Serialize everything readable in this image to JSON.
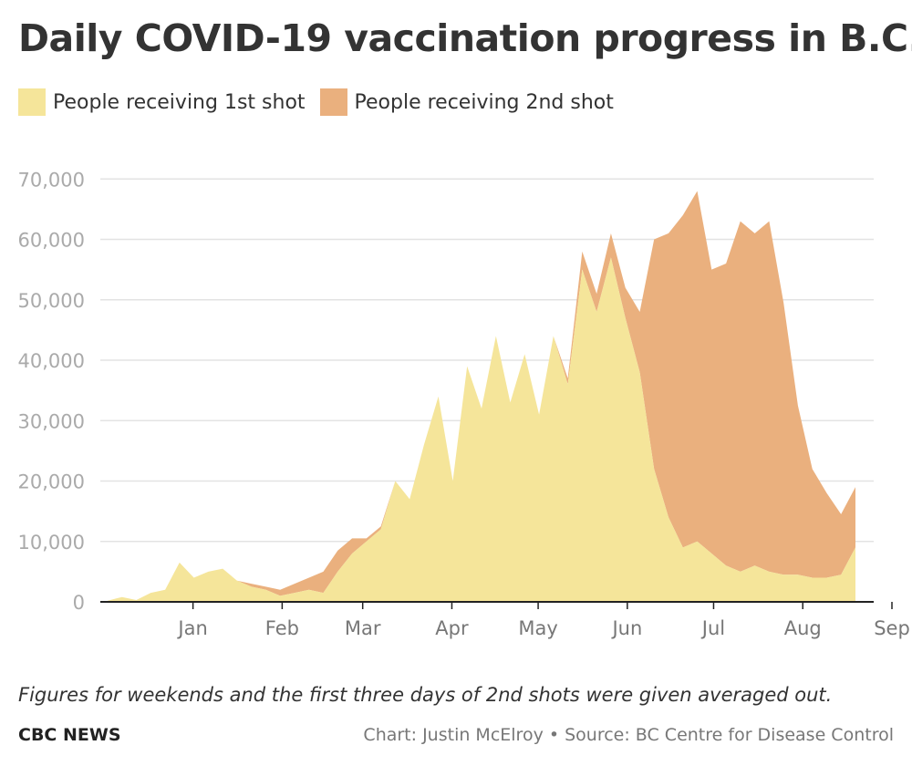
{
  "title": "Daily COVID-19 vaccination progress in B.C.",
  "legend": [
    {
      "label": "People receiving 1st shot",
      "color": "#f5e59a"
    },
    {
      "label": "People receiving 2nd shot",
      "color": "#eab07e"
    }
  ],
  "note": "Figures for weekends and the first three days of 2nd shots were given averaged out.",
  "brand": "CBC NEWS",
  "credit": "Chart: Justin McElroy • Source: BC Centre for Disease Control",
  "chart_data": {
    "type": "area",
    "stacked": true,
    "ylim": [
      0,
      80000
    ],
    "yticks": [
      0,
      10000,
      20000,
      30000,
      40000,
      50000,
      60000,
      70000
    ],
    "ytick_labels": [
      "0",
      "10,000",
      "20,000",
      "30,000",
      "40,000",
      "50,000",
      "60,000",
      "70,000"
    ],
    "xtick_labels": [
      "Jan",
      "Feb",
      "Mar",
      "Apr",
      "May",
      "Jun",
      "Jul",
      "Aug",
      "Sep"
    ],
    "grid": true,
    "x": [
      "Dec 15",
      "Dec 20",
      "Dec 25",
      "Dec 30",
      "Jan 4",
      "Jan 9",
      "Jan 14",
      "Jan 19",
      "Jan 24",
      "Jan 29",
      "Feb 3",
      "Feb 8",
      "Feb 13",
      "Feb 18",
      "Feb 23",
      "Feb 28",
      "Mar 5",
      "Mar 10",
      "Mar 15",
      "Mar 20",
      "Mar 25",
      "Mar 30",
      "Apr 4",
      "Apr 9",
      "Apr 14",
      "Apr 19",
      "Apr 24",
      "Apr 29",
      "May 4",
      "May 9",
      "May 14",
      "May 19",
      "May 24",
      "May 29",
      "Jun 3",
      "Jun 8",
      "Jun 13",
      "Jun 18",
      "Jun 23",
      "Jun 28",
      "Jul 3",
      "Jul 8",
      "Jul 13",
      "Jul 18",
      "Jul 23",
      "Jul 28",
      "Aug 2",
      "Aug 7",
      "Aug 12",
      "Aug 17",
      "Aug 22",
      "Aug 27",
      "Sep 1"
    ],
    "series": [
      {
        "name": "People receiving 1st shot",
        "values": [
          200,
          800,
          300,
          1500,
          2000,
          6500,
          4000,
          5000,
          5500,
          3500,
          2500,
          2000,
          1000,
          1500,
          2000,
          1500,
          5000,
          8000,
          10000,
          12000,
          20000,
          17000,
          26000,
          34000,
          20000,
          39000,
          32000,
          44000,
          33000,
          41000,
          31000,
          44000,
          36000,
          55000,
          48000,
          57000,
          47000,
          38000,
          22000,
          14000,
          9000,
          10000,
          8000,
          6000,
          5000,
          6000,
          5000,
          4500,
          4500,
          4000,
          4000,
          4500,
          9000
        ]
      },
      {
        "name": "People receiving 2nd shot",
        "values": [
          0,
          0,
          0,
          0,
          0,
          0,
          0,
          0,
          0,
          0,
          500,
          500,
          1000,
          1500,
          2000,
          3500,
          3500,
          2500,
          500,
          500,
          0,
          0,
          0,
          0,
          0,
          0,
          0,
          0,
          0,
          0,
          0,
          0,
          1000,
          3000,
          3000,
          4000,
          5000,
          10000,
          38000,
          47000,
          55000,
          58000,
          47000,
          50000,
          58000,
          55000,
          58000,
          45000,
          28000,
          18000,
          14000,
          10000,
          10000
        ]
      }
    ]
  }
}
